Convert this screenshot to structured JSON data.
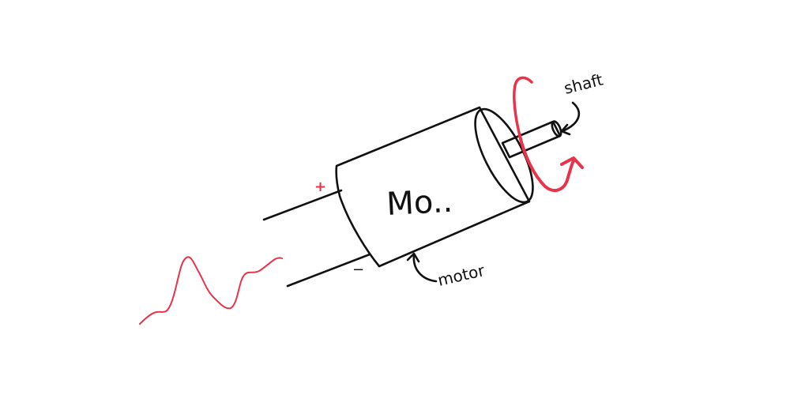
{
  "colors": {
    "background": "#ffffff",
    "ink": "#111111",
    "motor_body": "#e5e5e5",
    "shaft": "#e8d9bf",
    "accent_red": "#e8334a"
  },
  "labels": {
    "motor_body_text": "Mo..",
    "motor_label": "motor",
    "shaft_label": "shaft",
    "plus_sign": "+",
    "minus_sign": "−"
  },
  "icons": {
    "rotation": "rotation-arrow-icon",
    "signal": "waveform-icon"
  }
}
